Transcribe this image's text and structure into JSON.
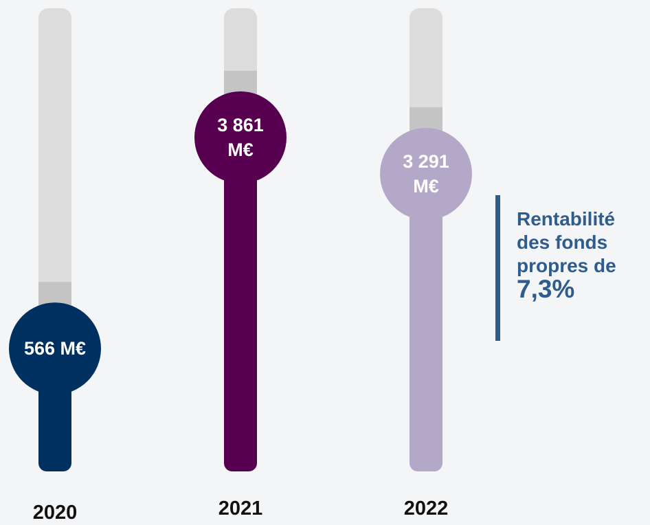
{
  "chart_data": {
    "type": "bar",
    "categories": [
      "2020",
      "2021",
      "2022"
    ],
    "values": [
      566,
      3861,
      3291
    ],
    "value_labels": [
      "566 M€",
      "3 861 M€",
      "3 291 M€"
    ],
    "colors": [
      "#003060",
      "#570050",
      "#b4a8c9"
    ],
    "annotation": "Rentabilité des fonds propres de",
    "annotation_value": "7,3%"
  }
}
